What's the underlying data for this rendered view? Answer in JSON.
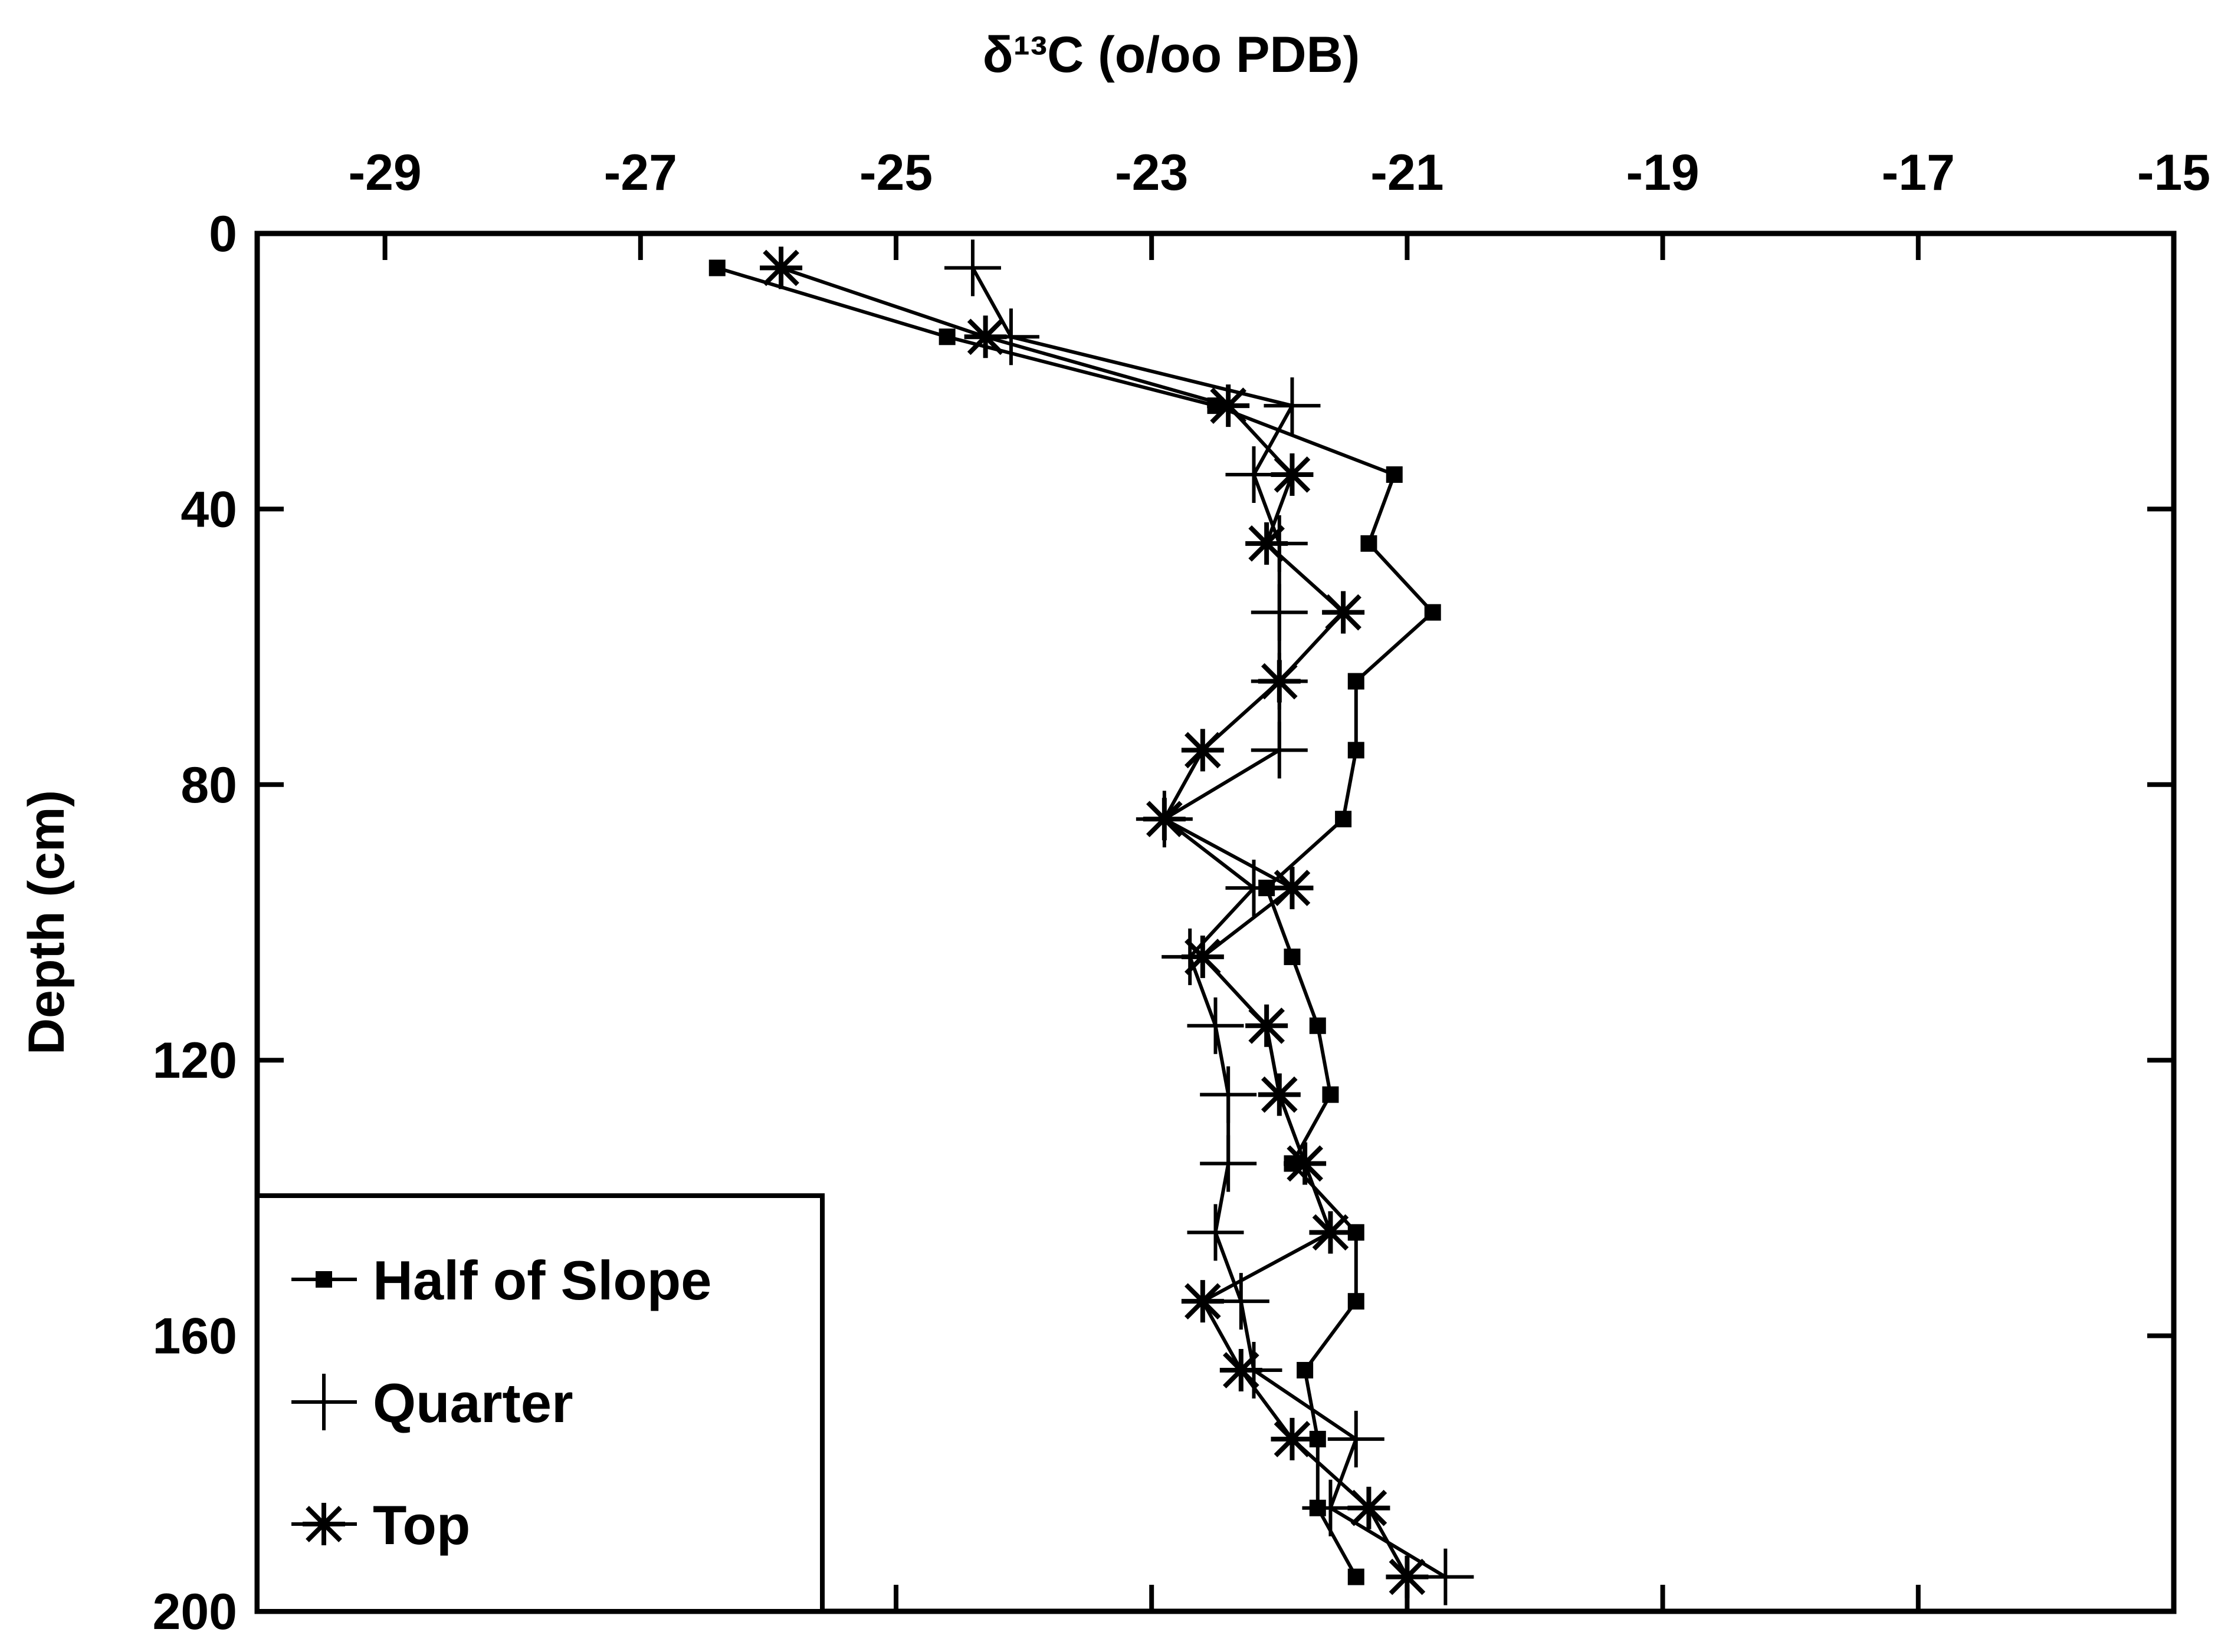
{
  "chart_data": {
    "type": "line",
    "xlabel": "δ¹³C (o/oo PDB)",
    "ylabel": "Depth (cm)",
    "xlim": [
      -30,
      -15
    ],
    "ylim": [
      0,
      200
    ],
    "x_axis_position": "top",
    "y_axis_inverted": true,
    "x_ticks": [
      -29,
      -27,
      -25,
      -23,
      -21,
      -19,
      -17,
      -15
    ],
    "x_tick_labels": [
      "-29",
      "-27",
      "-25",
      "-23",
      "-21",
      "-19",
      "-17",
      "-15"
    ],
    "y_ticks": [
      0,
      40,
      80,
      120,
      160,
      200
    ],
    "y_tick_labels": [
      "0",
      "40",
      "80",
      "120",
      "160",
      "200"
    ],
    "grid": false,
    "legend_position": "bottom-left",
    "series": [
      {
        "name": "Half of Slope",
        "marker": "square",
        "points": [
          [
            -26.4,
            5
          ],
          [
            -24.6,
            15
          ],
          [
            -22.5,
            25
          ],
          [
            -21.1,
            35
          ],
          [
            -21.3,
            45
          ],
          [
            -20.8,
            55
          ],
          [
            -21.4,
            65
          ],
          [
            -21.4,
            75
          ],
          [
            -21.5,
            85
          ],
          [
            -22.1,
            95
          ],
          [
            -21.9,
            105
          ],
          [
            -21.7,
            115
          ],
          [
            -21.6,
            125
          ],
          [
            -21.9,
            135
          ],
          [
            -21.4,
            145
          ],
          [
            -21.4,
            155
          ],
          [
            -21.8,
            165
          ],
          [
            -21.7,
            175
          ],
          [
            -21.7,
            185
          ],
          [
            -21.4,
            195
          ]
        ]
      },
      {
        "name": "Quarter",
        "marker": "plus",
        "points": [
          [
            -24.4,
            5
          ],
          [
            -24.1,
            15
          ],
          [
            -21.9,
            25
          ],
          [
            -22.2,
            35
          ],
          [
            -22.0,
            45
          ],
          [
            -22.0,
            55
          ],
          [
            -22.0,
            65
          ],
          [
            -22.0,
            75
          ],
          [
            -22.9,
            85
          ],
          [
            -22.2,
            95
          ],
          [
            -22.7,
            105
          ],
          [
            -22.5,
            115
          ],
          [
            -22.4,
            125
          ],
          [
            -22.4,
            135
          ],
          [
            -22.5,
            145
          ],
          [
            -22.3,
            155
          ],
          [
            -22.2,
            165
          ],
          [
            -21.4,
            175
          ],
          [
            -21.6,
            185
          ],
          [
            -20.7,
            195
          ]
        ]
      },
      {
        "name": "Top",
        "marker": "asterisk",
        "points": [
          [
            -25.9,
            5
          ],
          [
            -24.3,
            15
          ],
          [
            -22.4,
            25
          ],
          [
            -21.9,
            35
          ],
          [
            -22.1,
            45
          ],
          [
            -21.5,
            55
          ],
          [
            -22.0,
            65
          ],
          [
            -22.6,
            75
          ],
          [
            -22.9,
            85
          ],
          [
            -21.9,
            95
          ],
          [
            -22.6,
            105
          ],
          [
            -22.1,
            115
          ],
          [
            -22.0,
            125
          ],
          [
            -21.8,
            135
          ],
          [
            -21.6,
            145
          ],
          [
            -22.6,
            155
          ],
          [
            -22.3,
            165
          ],
          [
            -21.9,
            175
          ],
          [
            -21.3,
            185
          ],
          [
            -21.0,
            195
          ]
        ]
      }
    ]
  }
}
